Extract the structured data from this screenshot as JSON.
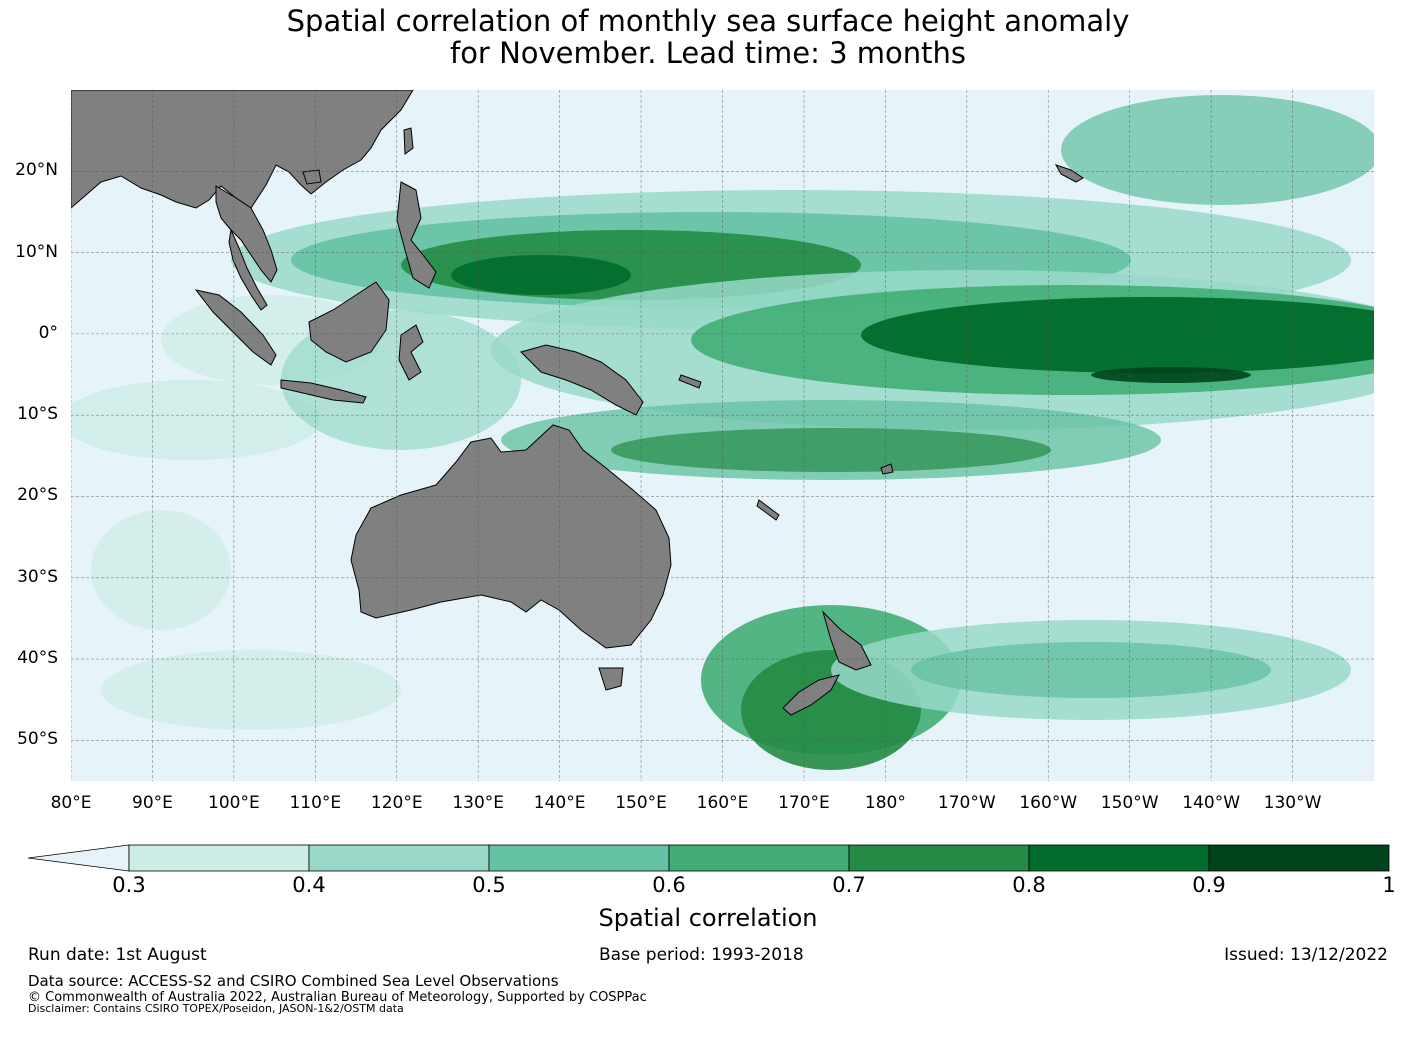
{
  "title": {
    "line1": "Spatial correlation of monthly sea surface height anomaly",
    "line2": "for November. Lead time: 3 months"
  },
  "map": {
    "region": "Tropical Pacific and Australasia",
    "ocean_color": "#e6f4f9",
    "land_color": "#808080",
    "lat_labels": [
      "20°N",
      "10°N",
      "0°",
      "10°S",
      "20°S",
      "30°S",
      "40°S",
      "50°S"
    ],
    "lon_labels": [
      "80°E",
      "90°E",
      "100°E",
      "110°E",
      "120°E",
      "130°E",
      "140°E",
      "150°E",
      "160°E",
      "170°E",
      "180°",
      "170°W",
      "160°W",
      "150°W",
      "140°W",
      "130°W"
    ],
    "lat_values": [
      20,
      10,
      0,
      -10,
      -20,
      -30,
      -40,
      -50
    ],
    "lon_values": [
      80,
      90,
      100,
      110,
      120,
      130,
      140,
      150,
      160,
      170,
      180,
      190,
      200,
      210,
      220,
      230
    ],
    "extent": {
      "lon": [
        80,
        240
      ],
      "lat": [
        -55,
        30
      ]
    },
    "grid": true
  },
  "colorbar": {
    "label": "Spatial correlation",
    "ticks": [
      "0.3",
      "0.4",
      "0.5",
      "0.6",
      "0.7",
      "0.8",
      "0.9",
      "1"
    ],
    "under_color": "#e6f4f9",
    "colors": [
      "#ccece6",
      "#99d8c9",
      "#66c2a4",
      "#41ae76",
      "#238b45",
      "#006d2c",
      "#00441b"
    ]
  },
  "footer": {
    "run_date": "Run date: 1st August",
    "base_period": "Base period: 1993-2018",
    "issued": "Issued: 13/12/2022",
    "source": "Data source: ACCESS-S2 and CSIRO Combined Sea Level Observations",
    "copyright": "© Commonwealth of Australia 2022, Australian Bureau of Meteorology, Supported by COSPPac",
    "disclaimer": "Disclaimer: Contains CSIRO TOPEX/Poseidon, JASON-1&2/OSTM data"
  }
}
